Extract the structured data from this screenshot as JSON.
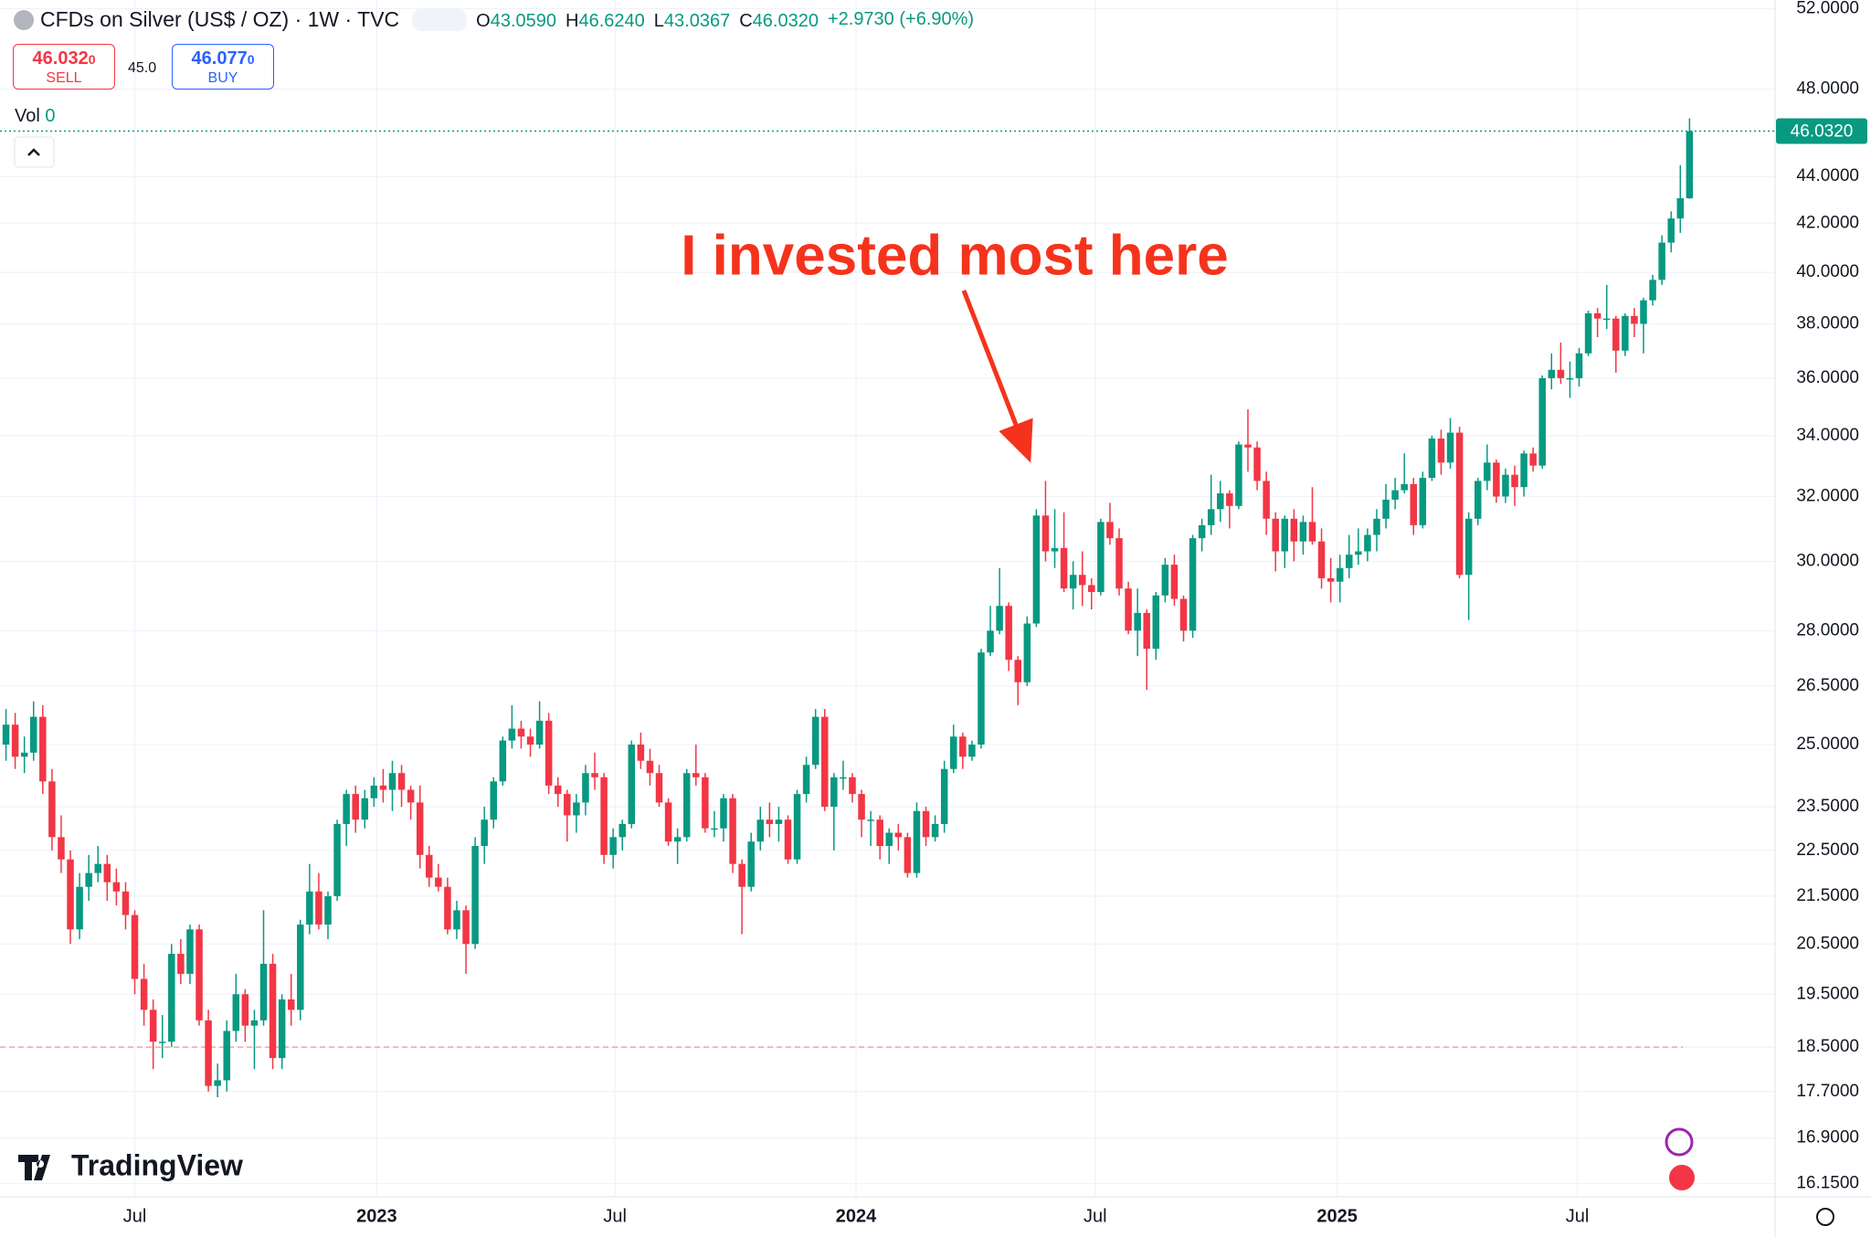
{
  "header": {
    "title": "CFDs on Silver (US$ / OZ) · 1W · TVC",
    "ohlc": [
      {
        "key": "O",
        "value": "43.0590"
      },
      {
        "key": "H",
        "value": "46.6240"
      },
      {
        "key": "L",
        "value": "43.0367"
      },
      {
        "key": "C",
        "value": "46.0320"
      }
    ],
    "change": "+2.9730 (+6.90%)",
    "sell": {
      "price": "46.032",
      "small": "0",
      "label": "SELL"
    },
    "spread": "45.0",
    "buy": {
      "price": "46.077",
      "small": "0",
      "label": "BUY"
    },
    "vol_label": "Vol",
    "vol_value": "0",
    "logo": "TradingView"
  },
  "chart_data": {
    "type": "candlestick",
    "annotation": "I invested most here",
    "up_color": "#089981",
    "down_color": "#f23645",
    "log_scale": true,
    "grid": true,
    "last_price": {
      "value": 46.032,
      "label": "46.0320"
    },
    "reference_line": 18.5,
    "xlim": [
      -0.65,
      192.3
    ],
    "ylim": [
      15.94,
      52.45
    ],
    "xticks": [
      {
        "value": 14,
        "label": "Jul"
      },
      {
        "value": 40.3,
        "label": "2023"
      },
      {
        "value": 66.2,
        "label": "Jul"
      },
      {
        "value": 92.4,
        "label": "2024"
      },
      {
        "value": 118.4,
        "label": "Jul"
      },
      {
        "value": 144.7,
        "label": "2025"
      },
      {
        "value": 170.8,
        "label": "Jul"
      }
    ],
    "yticks": [
      {
        "value": 52,
        "label": "52.0000"
      },
      {
        "value": 48,
        "label": "48.0000"
      },
      {
        "value": 44,
        "label": "44.0000"
      },
      {
        "value": 42,
        "label": "42.0000"
      },
      {
        "value": 40,
        "label": "40.0000"
      },
      {
        "value": 38,
        "label": "38.0000"
      },
      {
        "value": 36,
        "label": "36.0000"
      },
      {
        "value": 34,
        "label": "34.0000"
      },
      {
        "value": 32,
        "label": "32.0000"
      },
      {
        "value": 30,
        "label": "30.0000"
      },
      {
        "value": 28,
        "label": "28.0000"
      },
      {
        "value": 26.5,
        "label": "26.5000"
      },
      {
        "value": 25,
        "label": "25.0000"
      },
      {
        "value": 23.5,
        "label": "23.5000"
      },
      {
        "value": 22.5,
        "label": "22.5000"
      },
      {
        "value": 21.5,
        "label": "21.5000"
      },
      {
        "value": 20.5,
        "label": "20.5000"
      },
      {
        "value": 19.5,
        "label": "19.5000"
      },
      {
        "value": 18.5,
        "label": "18.5000"
      },
      {
        "value": 17.7,
        "label": "17.7000"
      },
      {
        "value": 16.9,
        "label": "16.9000"
      },
      {
        "value": 16.15,
        "label": "16.1500"
      }
    ],
    "candles": [
      [
        25.0,
        25.9,
        24.6,
        25.5
      ],
      [
        25.5,
        25.8,
        24.4,
        24.7
      ],
      [
        24.7,
        25.2,
        24.3,
        24.8
      ],
      [
        24.8,
        26.1,
        24.6,
        25.7
      ],
      [
        25.7,
        26.0,
        23.8,
        24.1
      ],
      [
        24.1,
        24.4,
        22.5,
        22.8
      ],
      [
        22.8,
        23.3,
        22.0,
        22.3
      ],
      [
        22.3,
        22.5,
        20.5,
        20.8
      ],
      [
        20.8,
        22.0,
        20.6,
        21.7
      ],
      [
        21.7,
        22.4,
        21.4,
        22.0
      ],
      [
        22.0,
        22.6,
        21.8,
        22.2
      ],
      [
        22.2,
        22.4,
        21.4,
        21.8
      ],
      [
        21.8,
        22.1,
        21.3,
        21.6
      ],
      [
        21.6,
        21.8,
        20.8,
        21.1
      ],
      [
        21.1,
        21.2,
        19.5,
        19.8
      ],
      [
        19.8,
        20.1,
        18.9,
        19.2
      ],
      [
        19.2,
        19.4,
        18.1,
        18.6
      ],
      [
        18.6,
        19.1,
        18.3,
        18.6
      ],
      [
        18.6,
        20.5,
        18.5,
        20.3
      ],
      [
        20.3,
        20.6,
        19.7,
        19.9
      ],
      [
        19.9,
        20.9,
        19.7,
        20.8
      ],
      [
        20.8,
        20.9,
        18.9,
        19.0
      ],
      [
        19.0,
        19.2,
        17.7,
        17.8
      ],
      [
        17.8,
        18.2,
        17.6,
        17.9
      ],
      [
        17.9,
        19.0,
        17.7,
        18.8
      ],
      [
        18.8,
        19.9,
        18.6,
        19.5
      ],
      [
        19.5,
        19.6,
        18.6,
        18.9
      ],
      [
        18.9,
        19.2,
        18.1,
        19.0
      ],
      [
        19.0,
        21.2,
        18.9,
        20.1
      ],
      [
        20.1,
        20.3,
        18.1,
        18.3
      ],
      [
        18.3,
        19.5,
        18.1,
        19.4
      ],
      [
        19.4,
        19.9,
        18.9,
        19.2
      ],
      [
        19.2,
        21.0,
        19.0,
        20.9
      ],
      [
        20.9,
        22.2,
        20.7,
        21.6
      ],
      [
        21.6,
        22.0,
        20.8,
        20.9
      ],
      [
        20.9,
        21.6,
        20.6,
        21.5
      ],
      [
        21.5,
        23.2,
        21.4,
        23.1
      ],
      [
        23.1,
        23.9,
        22.6,
        23.8
      ],
      [
        23.8,
        24.0,
        22.9,
        23.2
      ],
      [
        23.2,
        23.9,
        23.0,
        23.7
      ],
      [
        23.7,
        24.2,
        23.5,
        24.0
      ],
      [
        24.0,
        24.4,
        23.6,
        23.9
      ],
      [
        23.9,
        24.6,
        23.4,
        24.3
      ],
      [
        24.3,
        24.5,
        23.5,
        23.9
      ],
      [
        23.9,
        24.0,
        23.2,
        23.6
      ],
      [
        23.6,
        24.0,
        22.1,
        22.4
      ],
      [
        22.4,
        22.6,
        21.7,
        21.9
      ],
      [
        21.9,
        22.2,
        21.6,
        21.7
      ],
      [
        21.7,
        21.9,
        20.7,
        20.8
      ],
      [
        20.8,
        21.4,
        20.6,
        21.2
      ],
      [
        21.2,
        21.3,
        19.9,
        20.5
      ],
      [
        20.5,
        22.8,
        20.4,
        22.6
      ],
      [
        22.6,
        23.5,
        22.2,
        23.2
      ],
      [
        23.2,
        24.2,
        23.0,
        24.1
      ],
      [
        24.1,
        25.2,
        24.0,
        25.1
      ],
      [
        25.1,
        26.0,
        24.9,
        25.4
      ],
      [
        25.4,
        25.6,
        24.9,
        25.2
      ],
      [
        25.2,
        25.4,
        24.7,
        25.0
      ],
      [
        25.0,
        26.1,
        24.9,
        25.6
      ],
      [
        25.6,
        25.8,
        23.8,
        24.0
      ],
      [
        24.0,
        24.2,
        23.5,
        23.8
      ],
      [
        23.8,
        23.9,
        22.7,
        23.3
      ],
      [
        23.3,
        23.8,
        22.9,
        23.6
      ],
      [
        23.6,
        24.5,
        23.3,
        24.3
      ],
      [
        24.3,
        24.8,
        23.9,
        24.2
      ],
      [
        24.2,
        24.3,
        22.2,
        22.4
      ],
      [
        22.4,
        23.0,
        22.1,
        22.8
      ],
      [
        22.8,
        23.2,
        22.5,
        23.1
      ],
      [
        23.1,
        25.1,
        23.0,
        25.0
      ],
      [
        25.0,
        25.3,
        24.4,
        24.6
      ],
      [
        24.6,
        24.9,
        24.0,
        24.3
      ],
      [
        24.3,
        24.5,
        23.5,
        23.6
      ],
      [
        23.6,
        23.7,
        22.6,
        22.7
      ],
      [
        22.7,
        23.0,
        22.2,
        22.8
      ],
      [
        22.8,
        24.4,
        22.7,
        24.3
      ],
      [
        24.3,
        25.0,
        24.0,
        24.2
      ],
      [
        24.2,
        24.3,
        22.9,
        23.0
      ],
      [
        23.0,
        23.4,
        22.8,
        23.0
      ],
      [
        23.0,
        23.8,
        22.7,
        23.7
      ],
      [
        23.7,
        23.8,
        22.0,
        22.2
      ],
      [
        22.2,
        22.3,
        20.7,
        21.7
      ],
      [
        21.7,
        22.9,
        21.6,
        22.7
      ],
      [
        22.7,
        23.5,
        22.5,
        23.2
      ],
      [
        23.2,
        23.6,
        22.8,
        23.1
      ],
      [
        23.1,
        23.5,
        22.7,
        23.2
      ],
      [
        23.2,
        23.3,
        22.2,
        22.3
      ],
      [
        22.3,
        23.9,
        22.2,
        23.8
      ],
      [
        23.8,
        24.7,
        23.6,
        24.5
      ],
      [
        24.5,
        25.9,
        24.4,
        25.7
      ],
      [
        25.7,
        25.9,
        23.4,
        23.5
      ],
      [
        23.5,
        24.3,
        22.5,
        24.2
      ],
      [
        24.2,
        24.6,
        23.9,
        24.2
      ],
      [
        24.2,
        24.3,
        23.6,
        23.8
      ],
      [
        23.8,
        23.9,
        22.8,
        23.2
      ],
      [
        23.2,
        23.4,
        22.6,
        23.2
      ],
      [
        23.2,
        23.3,
        22.3,
        22.6
      ],
      [
        22.6,
        23.0,
        22.2,
        22.9
      ],
      [
        22.9,
        23.1,
        22.5,
        22.8
      ],
      [
        22.8,
        22.9,
        21.9,
        22.0
      ],
      [
        22.0,
        23.6,
        21.9,
        23.4
      ],
      [
        23.4,
        23.5,
        22.6,
        22.8
      ],
      [
        22.8,
        23.3,
        22.7,
        23.1
      ],
      [
        23.1,
        24.6,
        22.9,
        24.4
      ],
      [
        24.4,
        25.5,
        24.3,
        25.2
      ],
      [
        25.2,
        25.3,
        24.4,
        24.7
      ],
      [
        24.7,
        25.1,
        24.6,
        25.0
      ],
      [
        25.0,
        27.5,
        24.9,
        27.4
      ],
      [
        27.4,
        28.7,
        27.3,
        28.0
      ],
      [
        28.0,
        29.8,
        27.9,
        28.7
      ],
      [
        28.7,
        28.8,
        26.9,
        27.2
      ],
      [
        27.2,
        27.3,
        26.0,
        26.6
      ],
      [
        26.6,
        28.4,
        26.5,
        28.2
      ],
      [
        28.2,
        31.6,
        28.1,
        31.4
      ],
      [
        31.4,
        32.5,
        30.0,
        30.3
      ],
      [
        30.3,
        31.6,
        29.8,
        30.4
      ],
      [
        30.4,
        31.5,
        29.1,
        29.2
      ],
      [
        29.2,
        30.0,
        28.6,
        29.6
      ],
      [
        29.6,
        30.3,
        28.7,
        29.3
      ],
      [
        29.3,
        29.5,
        28.6,
        29.1
      ],
      [
        29.1,
        31.3,
        29.0,
        31.2
      ],
      [
        31.2,
        31.8,
        30.5,
        30.7
      ],
      [
        30.7,
        31.0,
        29.0,
        29.2
      ],
      [
        29.2,
        29.4,
        27.9,
        28.0
      ],
      [
        28.0,
        29.2,
        27.3,
        28.5
      ],
      [
        28.5,
        28.6,
        26.4,
        27.5
      ],
      [
        27.5,
        29.1,
        27.2,
        29.0
      ],
      [
        29.0,
        30.1,
        28.8,
        29.9
      ],
      [
        29.9,
        30.2,
        28.7,
        28.9
      ],
      [
        28.9,
        29.0,
        27.7,
        28.0
      ],
      [
        28.0,
        30.8,
        27.8,
        30.7
      ],
      [
        30.7,
        31.3,
        30.3,
        31.1
      ],
      [
        31.1,
        32.7,
        30.8,
        31.6
      ],
      [
        31.6,
        32.5,
        31.2,
        32.1
      ],
      [
        32.1,
        32.2,
        31.0,
        31.7
      ],
      [
        31.7,
        33.8,
        31.6,
        33.7
      ],
      [
        33.7,
        34.9,
        32.8,
        33.6
      ],
      [
        33.6,
        33.8,
        32.2,
        32.5
      ],
      [
        32.5,
        32.8,
        30.8,
        31.3
      ],
      [
        31.3,
        31.5,
        29.7,
        30.3
      ],
      [
        30.3,
        31.4,
        29.8,
        31.3
      ],
      [
        31.3,
        31.6,
        30.0,
        30.6
      ],
      [
        30.6,
        31.4,
        30.2,
        31.2
      ],
      [
        31.2,
        32.3,
        30.5,
        30.6
      ],
      [
        30.6,
        31.0,
        29.2,
        29.5
      ],
      [
        29.5,
        30.1,
        28.8,
        29.4
      ],
      [
        29.4,
        30.2,
        28.8,
        29.8
      ],
      [
        29.8,
        30.8,
        29.5,
        30.2
      ],
      [
        30.2,
        31.0,
        29.9,
        30.3
      ],
      [
        30.3,
        31.0,
        30.0,
        30.8
      ],
      [
        30.8,
        31.6,
        30.3,
        31.3
      ],
      [
        31.3,
        32.4,
        31.0,
        31.9
      ],
      [
        31.9,
        32.6,
        31.6,
        32.2
      ],
      [
        32.2,
        33.4,
        32.1,
        32.4
      ],
      [
        32.4,
        32.6,
        30.8,
        31.1
      ],
      [
        31.1,
        32.8,
        31.0,
        32.6
      ],
      [
        32.6,
        34.0,
        32.5,
        33.9
      ],
      [
        33.9,
        34.2,
        32.7,
        33.1
      ],
      [
        33.1,
        34.6,
        32.9,
        34.1
      ],
      [
        34.1,
        34.3,
        29.5,
        29.6
      ],
      [
        29.6,
        31.5,
        28.3,
        31.3
      ],
      [
        31.3,
        32.6,
        31.1,
        32.5
      ],
      [
        32.5,
        33.7,
        32.2,
        33.1
      ],
      [
        33.1,
        33.2,
        31.8,
        32.0
      ],
      [
        32.0,
        32.9,
        31.8,
        32.7
      ],
      [
        32.7,
        33.0,
        31.7,
        32.3
      ],
      [
        32.3,
        33.5,
        32.0,
        33.4
      ],
      [
        33.4,
        33.6,
        32.8,
        33.0
      ],
      [
        33.0,
        36.1,
        32.9,
        36.0
      ],
      [
        36.0,
        36.9,
        35.6,
        36.3
      ],
      [
        36.3,
        37.3,
        35.8,
        36.0
      ],
      [
        36.0,
        36.6,
        35.3,
        36.0
      ],
      [
        36.0,
        37.1,
        35.7,
        36.9
      ],
      [
        36.9,
        38.5,
        36.8,
        38.4
      ],
      [
        38.4,
        38.6,
        37.5,
        38.2
      ],
      [
        38.2,
        39.5,
        37.8,
        38.2
      ],
      [
        38.2,
        38.3,
        36.2,
        37.0
      ],
      [
        37.0,
        38.4,
        36.8,
        38.3
      ],
      [
        38.3,
        38.6,
        37.5,
        38.0
      ],
      [
        38.0,
        39.0,
        36.9,
        38.9
      ],
      [
        38.9,
        39.9,
        38.7,
        39.7
      ],
      [
        39.7,
        41.5,
        39.5,
        41.2
      ],
      [
        41.2,
        42.5,
        40.8,
        42.2
      ],
      [
        42.2,
        44.5,
        41.6,
        43.06
      ],
      [
        43.059,
        46.624,
        43.0367,
        46.032
      ]
    ]
  }
}
